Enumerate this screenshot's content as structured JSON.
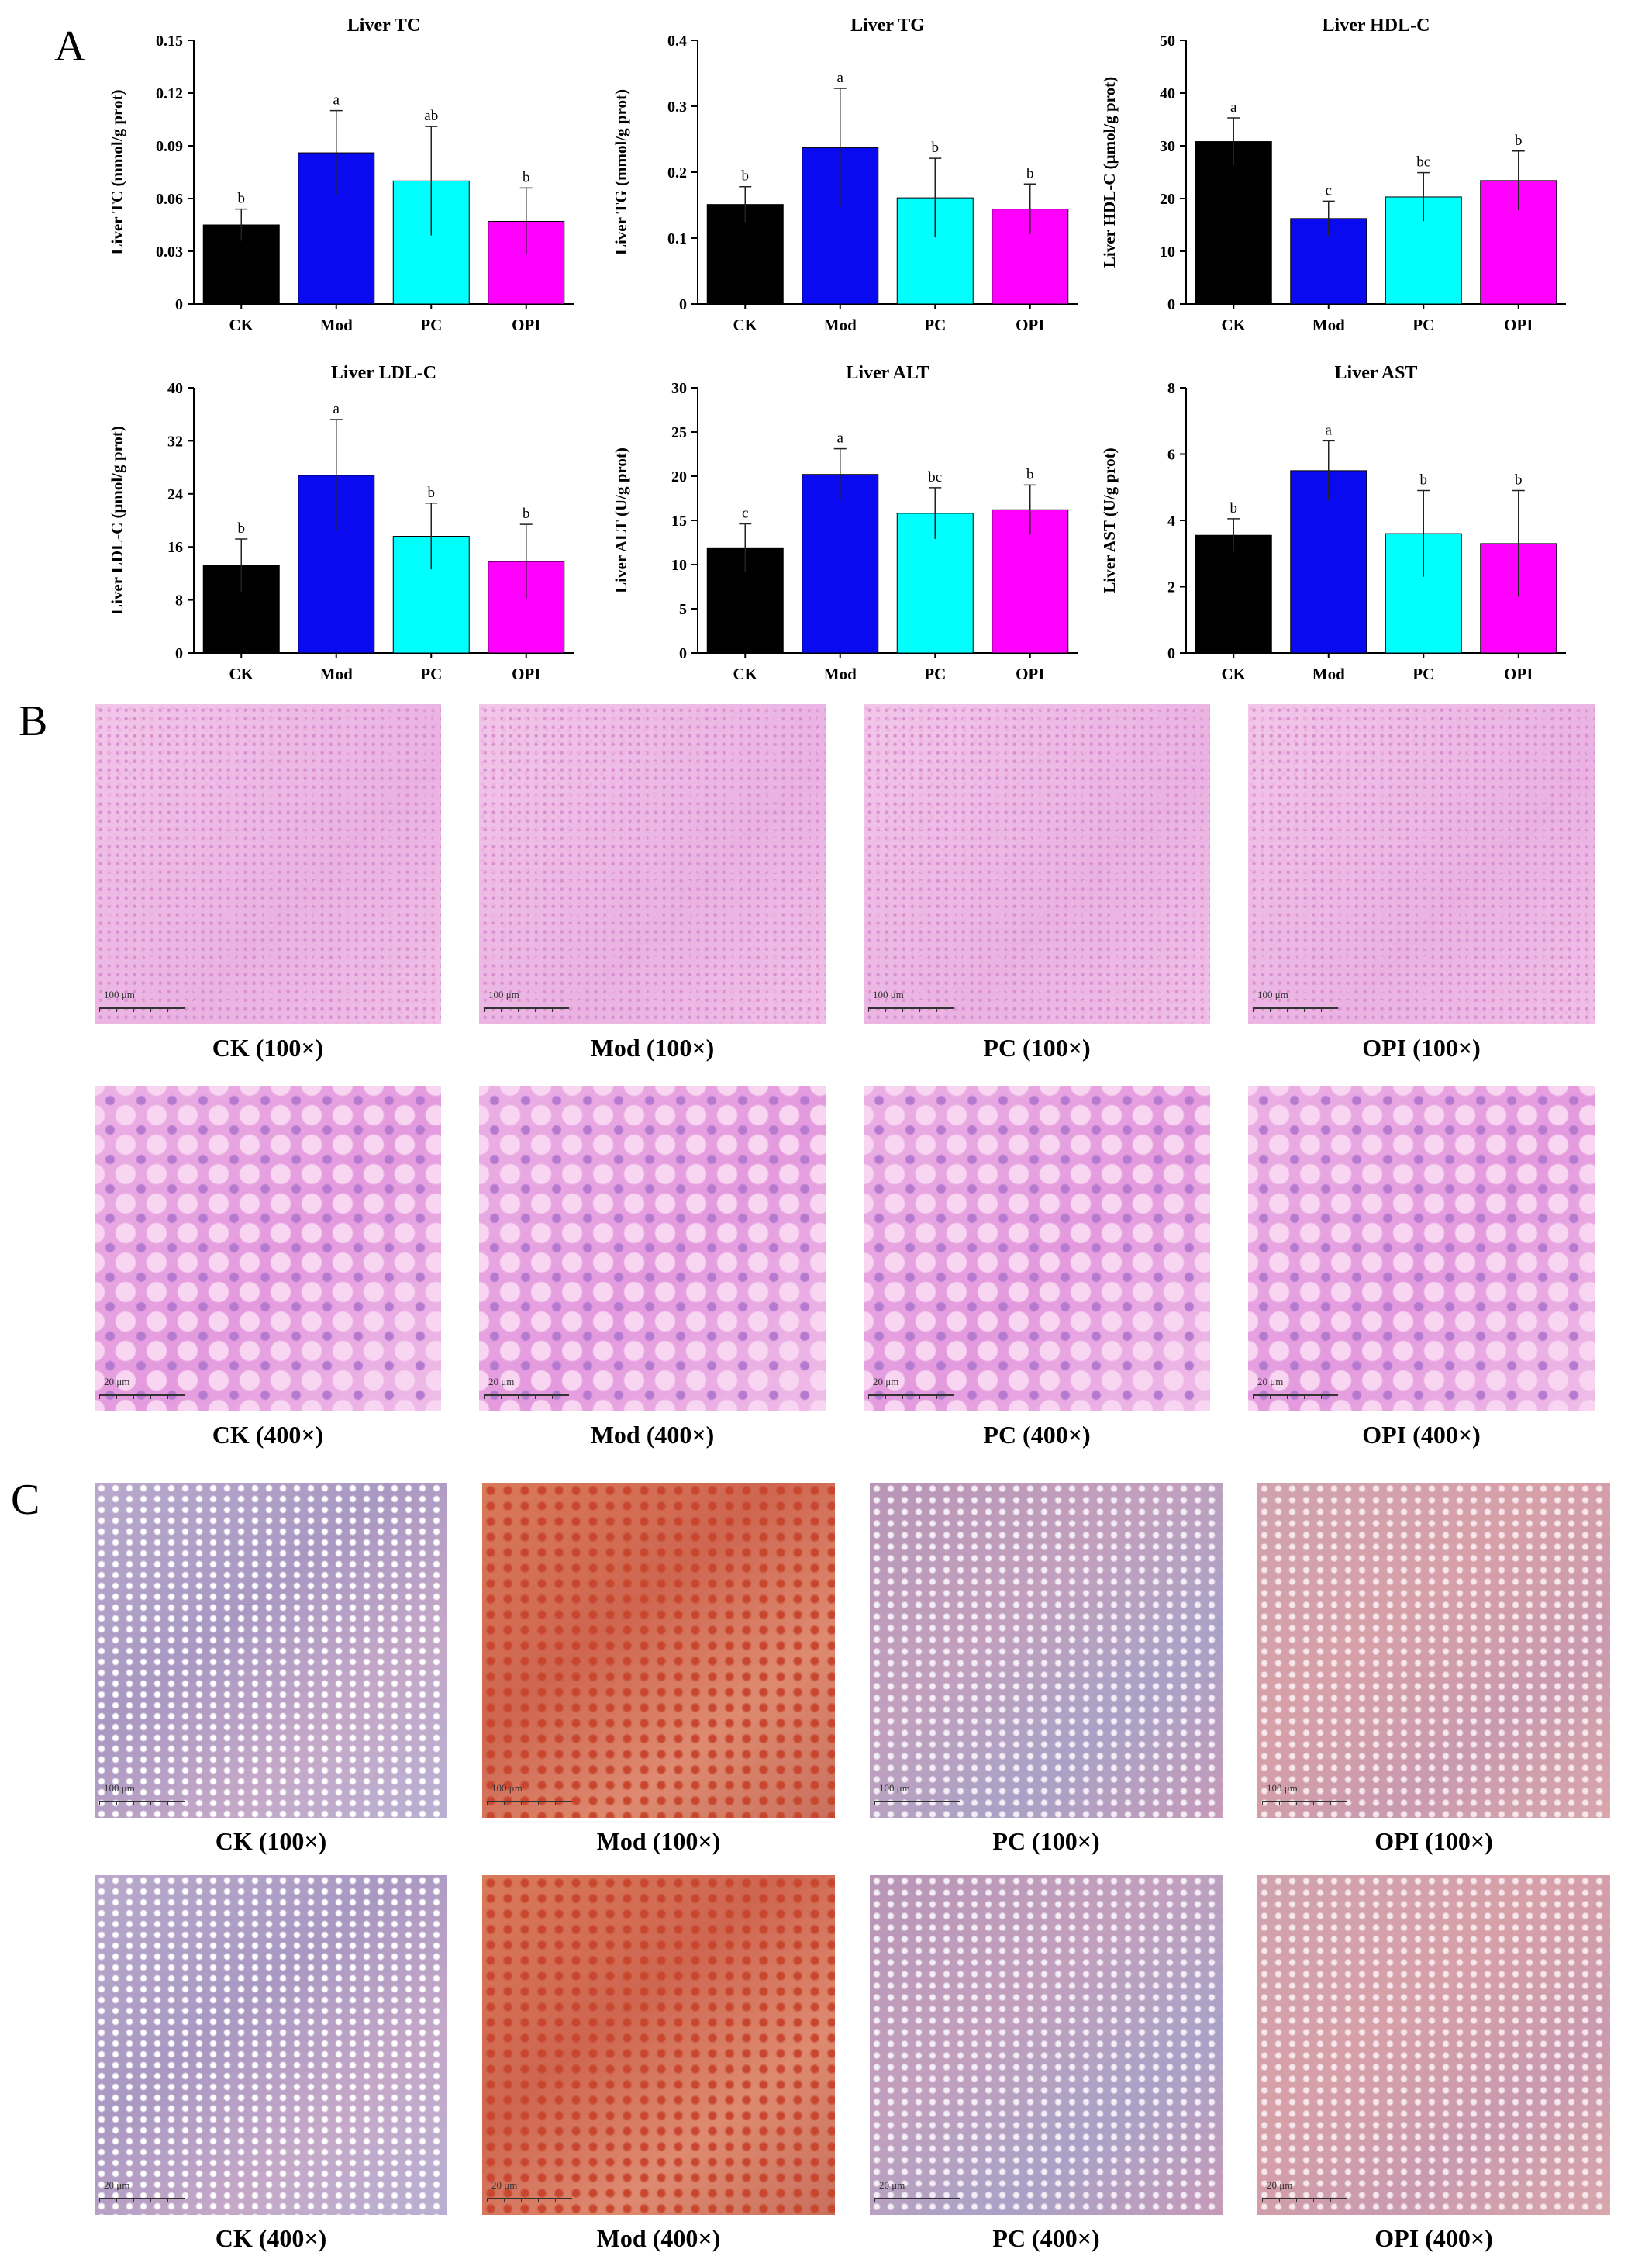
{
  "panels": {
    "a": "A",
    "b": "B",
    "c": "C"
  },
  "colors": {
    "CK": "#000000",
    "Mod": "#0a0af0",
    "PC": "#00ffff",
    "OPI": "#ff00ff"
  },
  "chart_data": [
    {
      "type": "bar",
      "title": "Liver TC",
      "ylabel": "Liver TC (mmol/g prot)",
      "categories": [
        "CK",
        "Mod",
        "PC",
        "OPI"
      ],
      "values": [
        0.045,
        0.086,
        0.07,
        0.047
      ],
      "errors": [
        0.009,
        0.024,
        0.031,
        0.019
      ],
      "letters": [
        "b",
        "a",
        "ab",
        "b"
      ],
      "ylim": [
        0,
        0.15
      ],
      "yticks": [
        "0",
        "0.03",
        "0.06",
        "0.09",
        "0.12",
        "0.15"
      ]
    },
    {
      "type": "bar",
      "title": "Liver TG",
      "ylabel": "Liver TG (mmol/g prot)",
      "categories": [
        "CK",
        "Mod",
        "PC",
        "OPI"
      ],
      "values": [
        0.151,
        0.237,
        0.161,
        0.144
      ],
      "errors": [
        0.027,
        0.09,
        0.06,
        0.038
      ],
      "letters": [
        "b",
        "a",
        "b",
        "b"
      ],
      "ylim": [
        0,
        0.4
      ],
      "yticks": [
        "0",
        "0.1",
        "0.2",
        "0.3",
        "0.4"
      ]
    },
    {
      "type": "bar",
      "title": "Liver HDL-C",
      "ylabel": "Liver HDL-C (μmol/g prot)",
      "categories": [
        "CK",
        "Mod",
        "PC",
        "OPI"
      ],
      "values": [
        30.8,
        16.2,
        20.3,
        23.4
      ],
      "errors": [
        4.5,
        3.3,
        4.6,
        5.6
      ],
      "letters": [
        "a",
        "c",
        "bc",
        "b"
      ],
      "ylim": [
        0,
        50
      ],
      "yticks": [
        "0",
        "10",
        "20",
        "30",
        "40",
        "50"
      ]
    },
    {
      "type": "bar",
      "title": "Liver LDL-C",
      "ylabel": "Liver LDL-C (μmol/g prot)",
      "categories": [
        "CK",
        "Mod",
        "PC",
        "OPI"
      ],
      "values": [
        13.2,
        26.8,
        17.6,
        13.8
      ],
      "errors": [
        4.0,
        8.4,
        5.0,
        5.6
      ],
      "letters": [
        "b",
        "a",
        "b",
        "b"
      ],
      "ylim": [
        0,
        40
      ],
      "yticks": [
        "0",
        "8",
        "16",
        "24",
        "32",
        "40"
      ]
    },
    {
      "type": "bar",
      "title": "Liver ALT",
      "ylabel": "Liver ALT (U/g prot)",
      "categories": [
        "CK",
        "Mod",
        "PC",
        "OPI"
      ],
      "values": [
        11.9,
        20.2,
        15.8,
        16.2
      ],
      "errors": [
        2.7,
        2.9,
        2.9,
        2.8
      ],
      "letters": [
        "c",
        "a",
        "bc",
        "b"
      ],
      "ylim": [
        0,
        30
      ],
      "yticks": [
        "0",
        "5",
        "10",
        "15",
        "20",
        "25",
        "30"
      ]
    },
    {
      "type": "bar",
      "title": "Liver AST",
      "ylabel": "Liver AST (U/g prot)",
      "categories": [
        "CK",
        "Mod",
        "PC",
        "OPI"
      ],
      "values": [
        3.55,
        5.5,
        3.6,
        3.3
      ],
      "errors": [
        0.5,
        0.9,
        1.3,
        1.6
      ],
      "letters": [
        "b",
        "a",
        "b",
        "b"
      ],
      "ylim": [
        0,
        8
      ],
      "yticks": [
        "0",
        "2",
        "4",
        "6",
        "8"
      ]
    }
  ],
  "micrographs": {
    "b": [
      {
        "caption": "CK (100×)",
        "scale": "100 μm",
        "stain": "he-low"
      },
      {
        "caption": "Mod (100×)",
        "scale": "100 μm",
        "stain": "he-low"
      },
      {
        "caption": "PC (100×)",
        "scale": "100 μm",
        "stain": "he-low"
      },
      {
        "caption": "OPI (100×)",
        "scale": "100 μm",
        "stain": "he-low"
      },
      {
        "caption": "CK (400×)",
        "scale": "20 μm",
        "stain": "he-high"
      },
      {
        "caption": "Mod (400×)",
        "scale": "20 μm",
        "stain": "he-high"
      },
      {
        "caption": "PC (400×)",
        "scale": "20 μm",
        "stain": "he-high"
      },
      {
        "caption": "OPI (400×)",
        "scale": "20 μm",
        "stain": "he-high"
      }
    ],
    "c": [
      {
        "caption": "CK (100×)",
        "scale": "100 μm",
        "stain": "oro-blue"
      },
      {
        "caption": "Mod (100×)",
        "scale": "100 μm",
        "stain": "oro-red"
      },
      {
        "caption": "PC (100×)",
        "scale": "100 μm",
        "stain": "oro-purple"
      },
      {
        "caption": "OPI (100×)",
        "scale": "100 μm",
        "stain": "oro-pink"
      },
      {
        "caption": "CK (400×)",
        "scale": "20 μm",
        "stain": "oro-blue"
      },
      {
        "caption": "Mod (400×)",
        "scale": "20 μm",
        "stain": "oro-red"
      },
      {
        "caption": "PC (400×)",
        "scale": "20 μm",
        "stain": "oro-purple"
      },
      {
        "caption": "OPI (400×)",
        "scale": "20 μm",
        "stain": "oro-pink"
      }
    ]
  }
}
